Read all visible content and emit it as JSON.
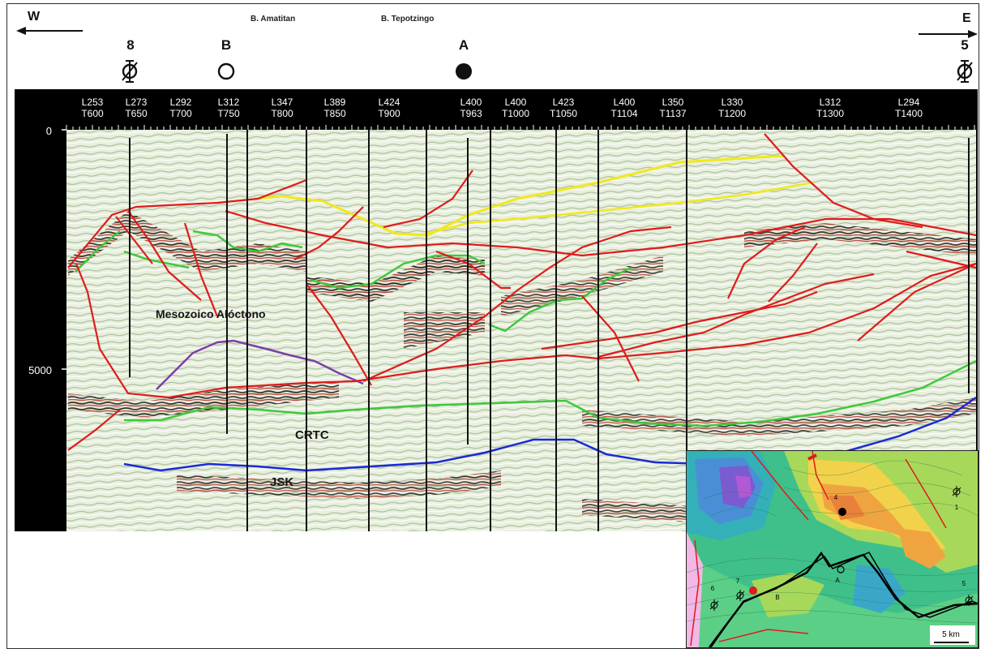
{
  "header": {
    "west_label": "W",
    "east_label": "E",
    "basins": [
      "B. Amatitan",
      "B. Tepotzingo"
    ]
  },
  "wells_top": [
    {
      "label": "8",
      "symbol": "plugged-well-icon"
    },
    {
      "label": "B",
      "symbol": "open-circle-icon"
    },
    {
      "label": "A",
      "symbol": "filled-circle-icon"
    },
    {
      "label": "5",
      "symbol": "plugged-well-icon"
    }
  ],
  "stations": [
    {
      "line": "L253",
      "trace": "T600"
    },
    {
      "line": "L273",
      "trace": "T650"
    },
    {
      "line": "L292",
      "trace": "T700"
    },
    {
      "line": "L312",
      "trace": "T750"
    },
    {
      "line": "L347",
      "trace": "T800"
    },
    {
      "line": "L389",
      "trace": "T850"
    },
    {
      "line": "L424",
      "trace": "T900"
    },
    {
      "line": "L400",
      "trace": "T963"
    },
    {
      "line": "L400",
      "trace": "T1000"
    },
    {
      "line": "L423",
      "trace": "T1050"
    },
    {
      "line": "L400",
      "trace": "T1104"
    },
    {
      "line": "L350",
      "trace": "T1137"
    },
    {
      "line": "L330",
      "trace": "T1200"
    },
    {
      "line": "L312",
      "trace": "T1300"
    },
    {
      "line": "L294",
      "trace": "T1400"
    }
  ],
  "depth_ticks": [
    "0",
    "5000"
  ],
  "units": [
    {
      "label": "Mesozoico Alóctono"
    },
    {
      "label": "CRTC"
    },
    {
      "label": "JSK"
    }
  ],
  "horizon_colors": {
    "fault": "#e01b1b",
    "tertiary_top": "#f2e81a",
    "mesozoic_top": "#3ec93a",
    "crtc_top": "#3ec93a",
    "jsk_top": "#1a2ad6",
    "allochthon_base": "#7a3fa8",
    "well_trace": "#000000"
  },
  "inset_map": {
    "wells": [
      {
        "label": "1"
      },
      {
        "label": "4"
      },
      {
        "label": "A"
      },
      {
        "label": "B"
      },
      {
        "label": "5"
      },
      {
        "label": "6"
      },
      {
        "label": "7"
      }
    ],
    "scale_label": "5 km"
  }
}
